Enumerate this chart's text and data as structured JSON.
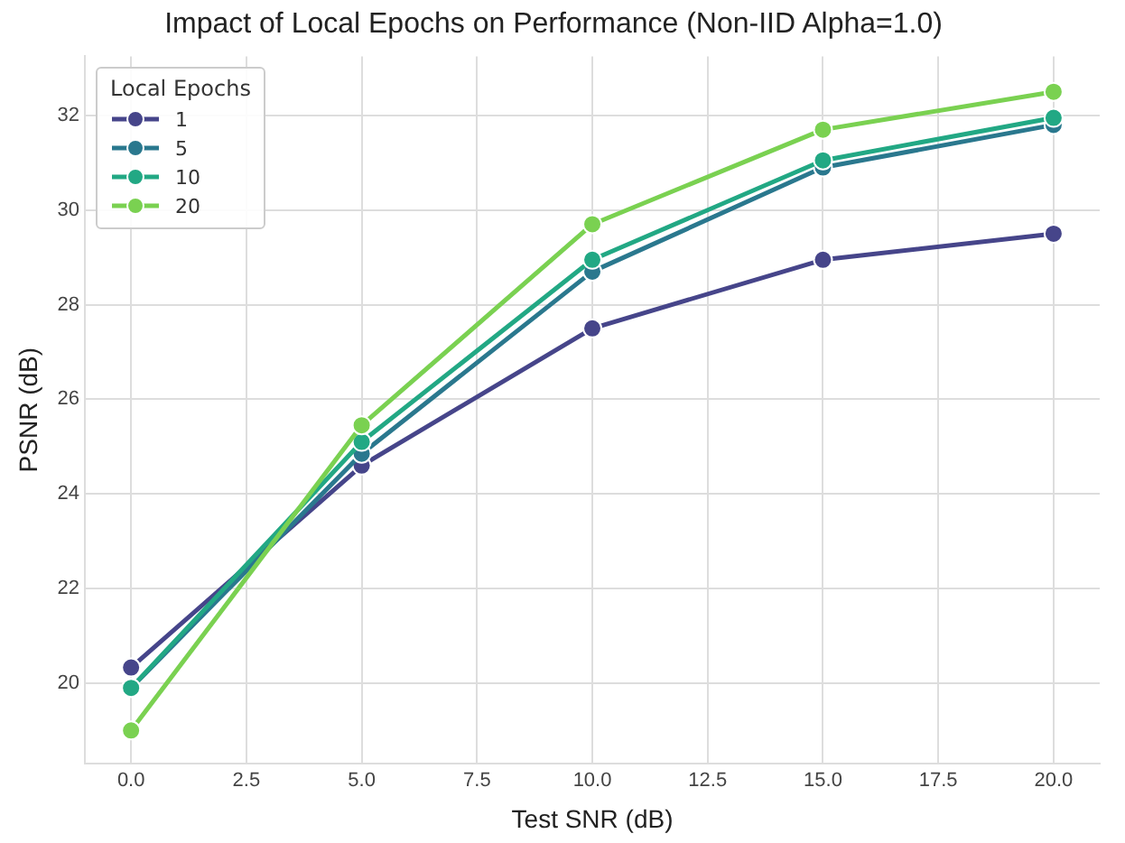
{
  "chart_data": {
    "type": "line",
    "title": "Impact of Local Epochs on Performance (Non-IID Alpha=1.0)",
    "xlabel": "Test SNR (dB)",
    "ylabel": "PSNR (dB)",
    "legend_title": "Local Epochs",
    "x": [
      0,
      5,
      10,
      15,
      20
    ],
    "series": [
      {
        "name": "1",
        "color": "#46458a",
        "values": [
          20.33,
          24.6,
          27.5,
          28.95,
          29.5
        ]
      },
      {
        "name": "5",
        "color": "#2a788e",
        "values": [
          19.9,
          24.85,
          28.7,
          30.9,
          31.8
        ]
      },
      {
        "name": "10",
        "color": "#22a884",
        "values": [
          19.9,
          25.1,
          28.95,
          31.05,
          31.95
        ]
      },
      {
        "name": "20",
        "color": "#7ad151",
        "values": [
          19.0,
          25.45,
          29.7,
          31.7,
          32.5
        ]
      }
    ],
    "xlim": [
      -1,
      21
    ],
    "xticks": [
      {
        "value": 0,
        "label": "0.0"
      },
      {
        "value": 2.5,
        "label": "2.5"
      },
      {
        "value": 5,
        "label": "5.0"
      },
      {
        "value": 7.5,
        "label": "7.5"
      },
      {
        "value": 10,
        "label": "10.0"
      },
      {
        "value": 12.5,
        "label": "12.5"
      },
      {
        "value": 15,
        "label": "15.0"
      },
      {
        "value": 17.5,
        "label": "17.5"
      },
      {
        "value": 20,
        "label": "20.0"
      }
    ],
    "ylim": [
      18.3,
      33.25
    ],
    "yticks": [
      20,
      22,
      24,
      26,
      28,
      30,
      32
    ],
    "grid": true,
    "legend": "top left",
    "marker": "circle",
    "line_style": "solid"
  }
}
